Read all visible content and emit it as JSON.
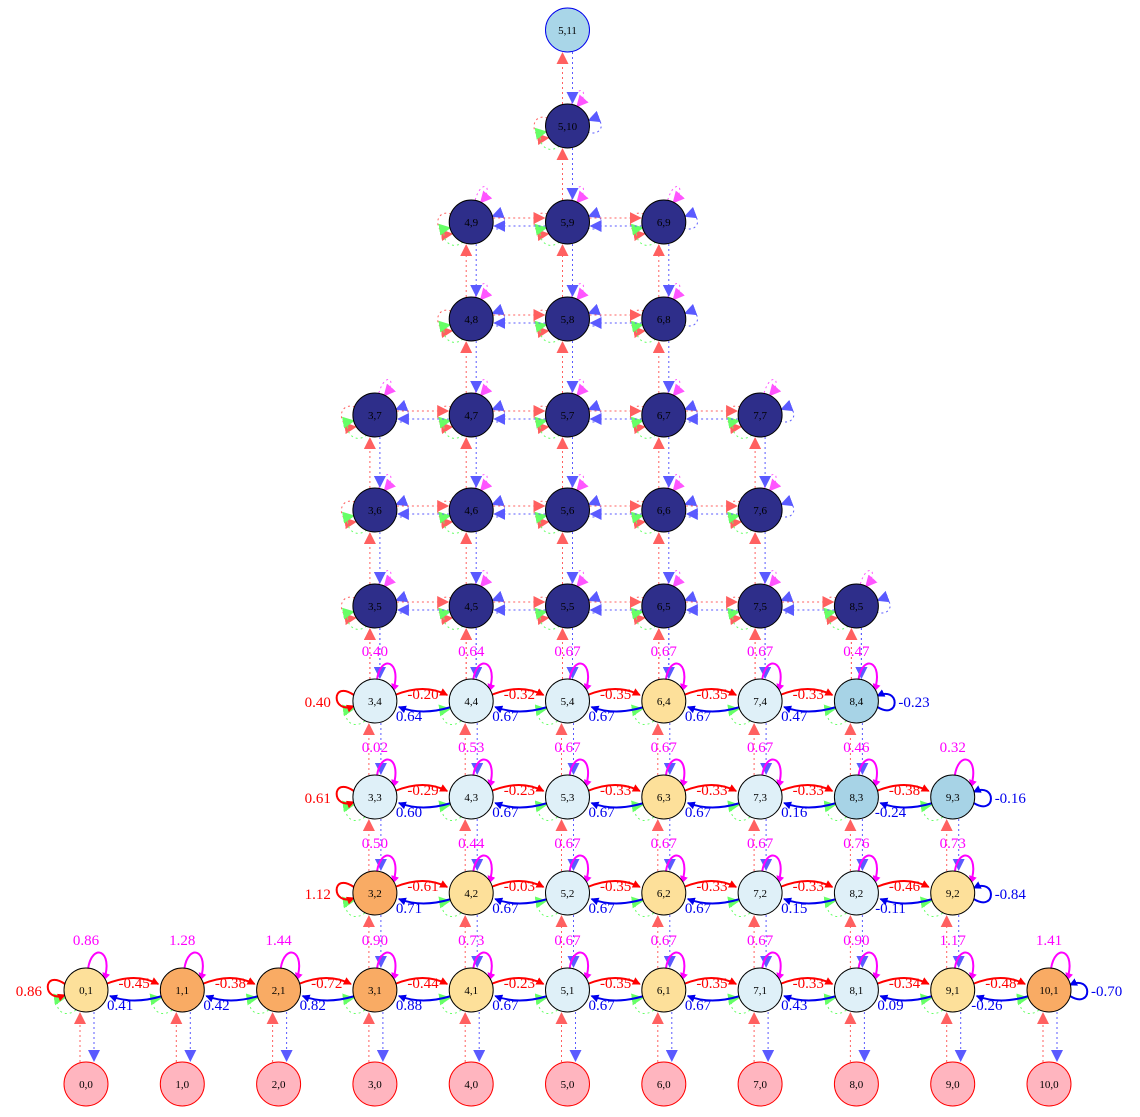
{
  "colors": {
    "dark": "#2e2e8a",
    "light": "#dff0f8",
    "mid": "#a7d3e6",
    "yellow": "#fde09a",
    "orange": "#f9ab64",
    "pink": "#ffb5bf",
    "top": "#a9d6e8",
    "red": "#ff0000",
    "blue": "#0000ee",
    "magenta": "#ff00ff",
    "green": "#66ff66"
  },
  "nodes": [
    {
      "id": "5,11",
      "c": 5,
      "r": 11,
      "t": "top"
    },
    {
      "id": "5,10",
      "c": 5,
      "r": 10,
      "t": "dark"
    },
    {
      "id": "4,9",
      "c": 4,
      "r": 9,
      "t": "dark"
    },
    {
      "id": "5,9",
      "c": 5,
      "r": 9,
      "t": "dark"
    },
    {
      "id": "6,9",
      "c": 6,
      "r": 9,
      "t": "dark"
    },
    {
      "id": "4,8",
      "c": 4,
      "r": 8,
      "t": "dark"
    },
    {
      "id": "5,8",
      "c": 5,
      "r": 8,
      "t": "dark"
    },
    {
      "id": "6,8",
      "c": 6,
      "r": 8,
      "t": "dark"
    },
    {
      "id": "3,7",
      "c": 3,
      "r": 7,
      "t": "dark"
    },
    {
      "id": "4,7",
      "c": 4,
      "r": 7,
      "t": "dark"
    },
    {
      "id": "5,7",
      "c": 5,
      "r": 7,
      "t": "dark"
    },
    {
      "id": "6,7",
      "c": 6,
      "r": 7,
      "t": "dark"
    },
    {
      "id": "7,7",
      "c": 7,
      "r": 7,
      "t": "dark"
    },
    {
      "id": "3,6",
      "c": 3,
      "r": 6,
      "t": "dark"
    },
    {
      "id": "4,6",
      "c": 4,
      "r": 6,
      "t": "dark"
    },
    {
      "id": "5,6",
      "c": 5,
      "r": 6,
      "t": "dark"
    },
    {
      "id": "6,6",
      "c": 6,
      "r": 6,
      "t": "dark"
    },
    {
      "id": "7,6",
      "c": 7,
      "r": 6,
      "t": "dark"
    },
    {
      "id": "3,5",
      "c": 3,
      "r": 5,
      "t": "dark"
    },
    {
      "id": "4,5",
      "c": 4,
      "r": 5,
      "t": "dark"
    },
    {
      "id": "5,5",
      "c": 5,
      "r": 5,
      "t": "dark"
    },
    {
      "id": "6,5",
      "c": 6,
      "r": 5,
      "t": "dark"
    },
    {
      "id": "7,5",
      "c": 7,
      "r": 5,
      "t": "dark"
    },
    {
      "id": "8,5",
      "c": 8,
      "r": 5,
      "t": "dark"
    },
    {
      "id": "3,4",
      "c": 3,
      "r": 4,
      "t": "light"
    },
    {
      "id": "4,4",
      "c": 4,
      "r": 4,
      "t": "light"
    },
    {
      "id": "5,4",
      "c": 5,
      "r": 4,
      "t": "light"
    },
    {
      "id": "6,4",
      "c": 6,
      "r": 4,
      "t": "yellow"
    },
    {
      "id": "7,4",
      "c": 7,
      "r": 4,
      "t": "light"
    },
    {
      "id": "8,4",
      "c": 8,
      "r": 4,
      "t": "mid"
    },
    {
      "id": "3,3",
      "c": 3,
      "r": 3,
      "t": "light"
    },
    {
      "id": "4,3",
      "c": 4,
      "r": 3,
      "t": "light"
    },
    {
      "id": "5,3",
      "c": 5,
      "r": 3,
      "t": "light"
    },
    {
      "id": "6,3",
      "c": 6,
      "r": 3,
      "t": "yellow"
    },
    {
      "id": "7,3",
      "c": 7,
      "r": 3,
      "t": "light"
    },
    {
      "id": "8,3",
      "c": 8,
      "r": 3,
      "t": "mid"
    },
    {
      "id": "9,3",
      "c": 9,
      "r": 3,
      "t": "mid"
    },
    {
      "id": "3,2",
      "c": 3,
      "r": 2,
      "t": "orange"
    },
    {
      "id": "4,2",
      "c": 4,
      "r": 2,
      "t": "yellow"
    },
    {
      "id": "5,2",
      "c": 5,
      "r": 2,
      "t": "light"
    },
    {
      "id": "6,2",
      "c": 6,
      "r": 2,
      "t": "yellow"
    },
    {
      "id": "7,2",
      "c": 7,
      "r": 2,
      "t": "light"
    },
    {
      "id": "8,2",
      "c": 8,
      "r": 2,
      "t": "light"
    },
    {
      "id": "9,2",
      "c": 9,
      "r": 2,
      "t": "yellow"
    },
    {
      "id": "0,1",
      "c": 0,
      "r": 1,
      "t": "yellow"
    },
    {
      "id": "1,1",
      "c": 1,
      "r": 1,
      "t": "orange"
    },
    {
      "id": "2,1",
      "c": 2,
      "r": 1,
      "t": "orange"
    },
    {
      "id": "3,1",
      "c": 3,
      "r": 1,
      "t": "orange"
    },
    {
      "id": "4,1",
      "c": 4,
      "r": 1,
      "t": "yellow"
    },
    {
      "id": "5,1",
      "c": 5,
      "r": 1,
      "t": "light"
    },
    {
      "id": "6,1",
      "c": 6,
      "r": 1,
      "t": "yellow"
    },
    {
      "id": "7,1",
      "c": 7,
      "r": 1,
      "t": "light"
    },
    {
      "id": "8,1",
      "c": 8,
      "r": 1,
      "t": "light"
    },
    {
      "id": "9,1",
      "c": 9,
      "r": 1,
      "t": "yellow"
    },
    {
      "id": "10,1",
      "c": 10,
      "r": 1,
      "t": "orange"
    },
    {
      "id": "0,0",
      "c": 0,
      "r": 0,
      "t": "pink"
    },
    {
      "id": "1,0",
      "c": 1,
      "r": 0,
      "t": "pink"
    },
    {
      "id": "2,0",
      "c": 2,
      "r": 0,
      "t": "pink"
    },
    {
      "id": "3,0",
      "c": 3,
      "r": 0,
      "t": "pink"
    },
    {
      "id": "4,0",
      "c": 4,
      "r": 0,
      "t": "pink"
    },
    {
      "id": "5,0",
      "c": 5,
      "r": 0,
      "t": "pink"
    },
    {
      "id": "6,0",
      "c": 6,
      "r": 0,
      "t": "pink"
    },
    {
      "id": "7,0",
      "c": 7,
      "r": 0,
      "t": "pink"
    },
    {
      "id": "8,0",
      "c": 8,
      "r": 0,
      "t": "pink"
    },
    {
      "id": "9,0",
      "c": 9,
      "r": 0,
      "t": "pink"
    },
    {
      "id": "10,0",
      "c": 10,
      "r": 0,
      "t": "pink"
    }
  ],
  "rows": [
    {
      "r": 4,
      "startCol": 3,
      "left": "0.40",
      "right": "-0.23",
      "forward": [
        "-0.20",
        "-0.32",
        "-0.35",
        "-0.35",
        "-0.33"
      ],
      "backward": [
        "0.64",
        "0.67",
        "0.67",
        "0.67",
        "0.47"
      ],
      "loops": [
        "0.40",
        "0.64",
        "0.67",
        "0.67",
        "0.67",
        "0.47"
      ]
    },
    {
      "r": 3,
      "startCol": 3,
      "left": "0.61",
      "right": "-0.16",
      "forward": [
        "-0.29",
        "-0.23",
        "-0.33",
        "-0.33",
        "-0.33",
        "-0.38"
      ],
      "backward": [
        "0.60",
        "0.67",
        "0.67",
        "0.67",
        "0.16",
        "-0.24"
      ],
      "loops": [
        "0.02",
        "0.53",
        "0.67",
        "0.67",
        "0.67",
        "0.46",
        "0.32"
      ]
    },
    {
      "r": 2,
      "startCol": 3,
      "left": "1.12",
      "right": "-0.84",
      "forward": [
        "-0.61",
        "-0.03",
        "-0.35",
        "-0.33",
        "-0.33",
        "-0.46"
      ],
      "backward": [
        "0.71",
        "0.67",
        "0.67",
        "0.67",
        "0.15",
        "-0.11"
      ],
      "loops": [
        "0.50",
        "0.44",
        "0.67",
        "0.67",
        "0.67",
        "0.76",
        "0.73"
      ]
    },
    {
      "r": 1,
      "startCol": 0,
      "left": "0.86",
      "right": "-0.70",
      "forward": [
        "-0.45",
        "-0.38",
        "-0.72",
        "-0.44",
        "-0.23",
        "-0.35",
        "-0.35",
        "-0.33",
        "-0.34",
        "-0.48"
      ],
      "backward": [
        "0.41",
        "0.42",
        "0.82",
        "0.88",
        "0.67",
        "0.67",
        "0.67",
        "0.43",
        "0.09",
        "-0.26"
      ],
      "loops": [
        "0.86",
        "1.28",
        "1.44",
        "0.90",
        "0.73",
        "0.67",
        "0.67",
        "0.67",
        "0.90",
        "1.17",
        "1.41"
      ]
    }
  ]
}
